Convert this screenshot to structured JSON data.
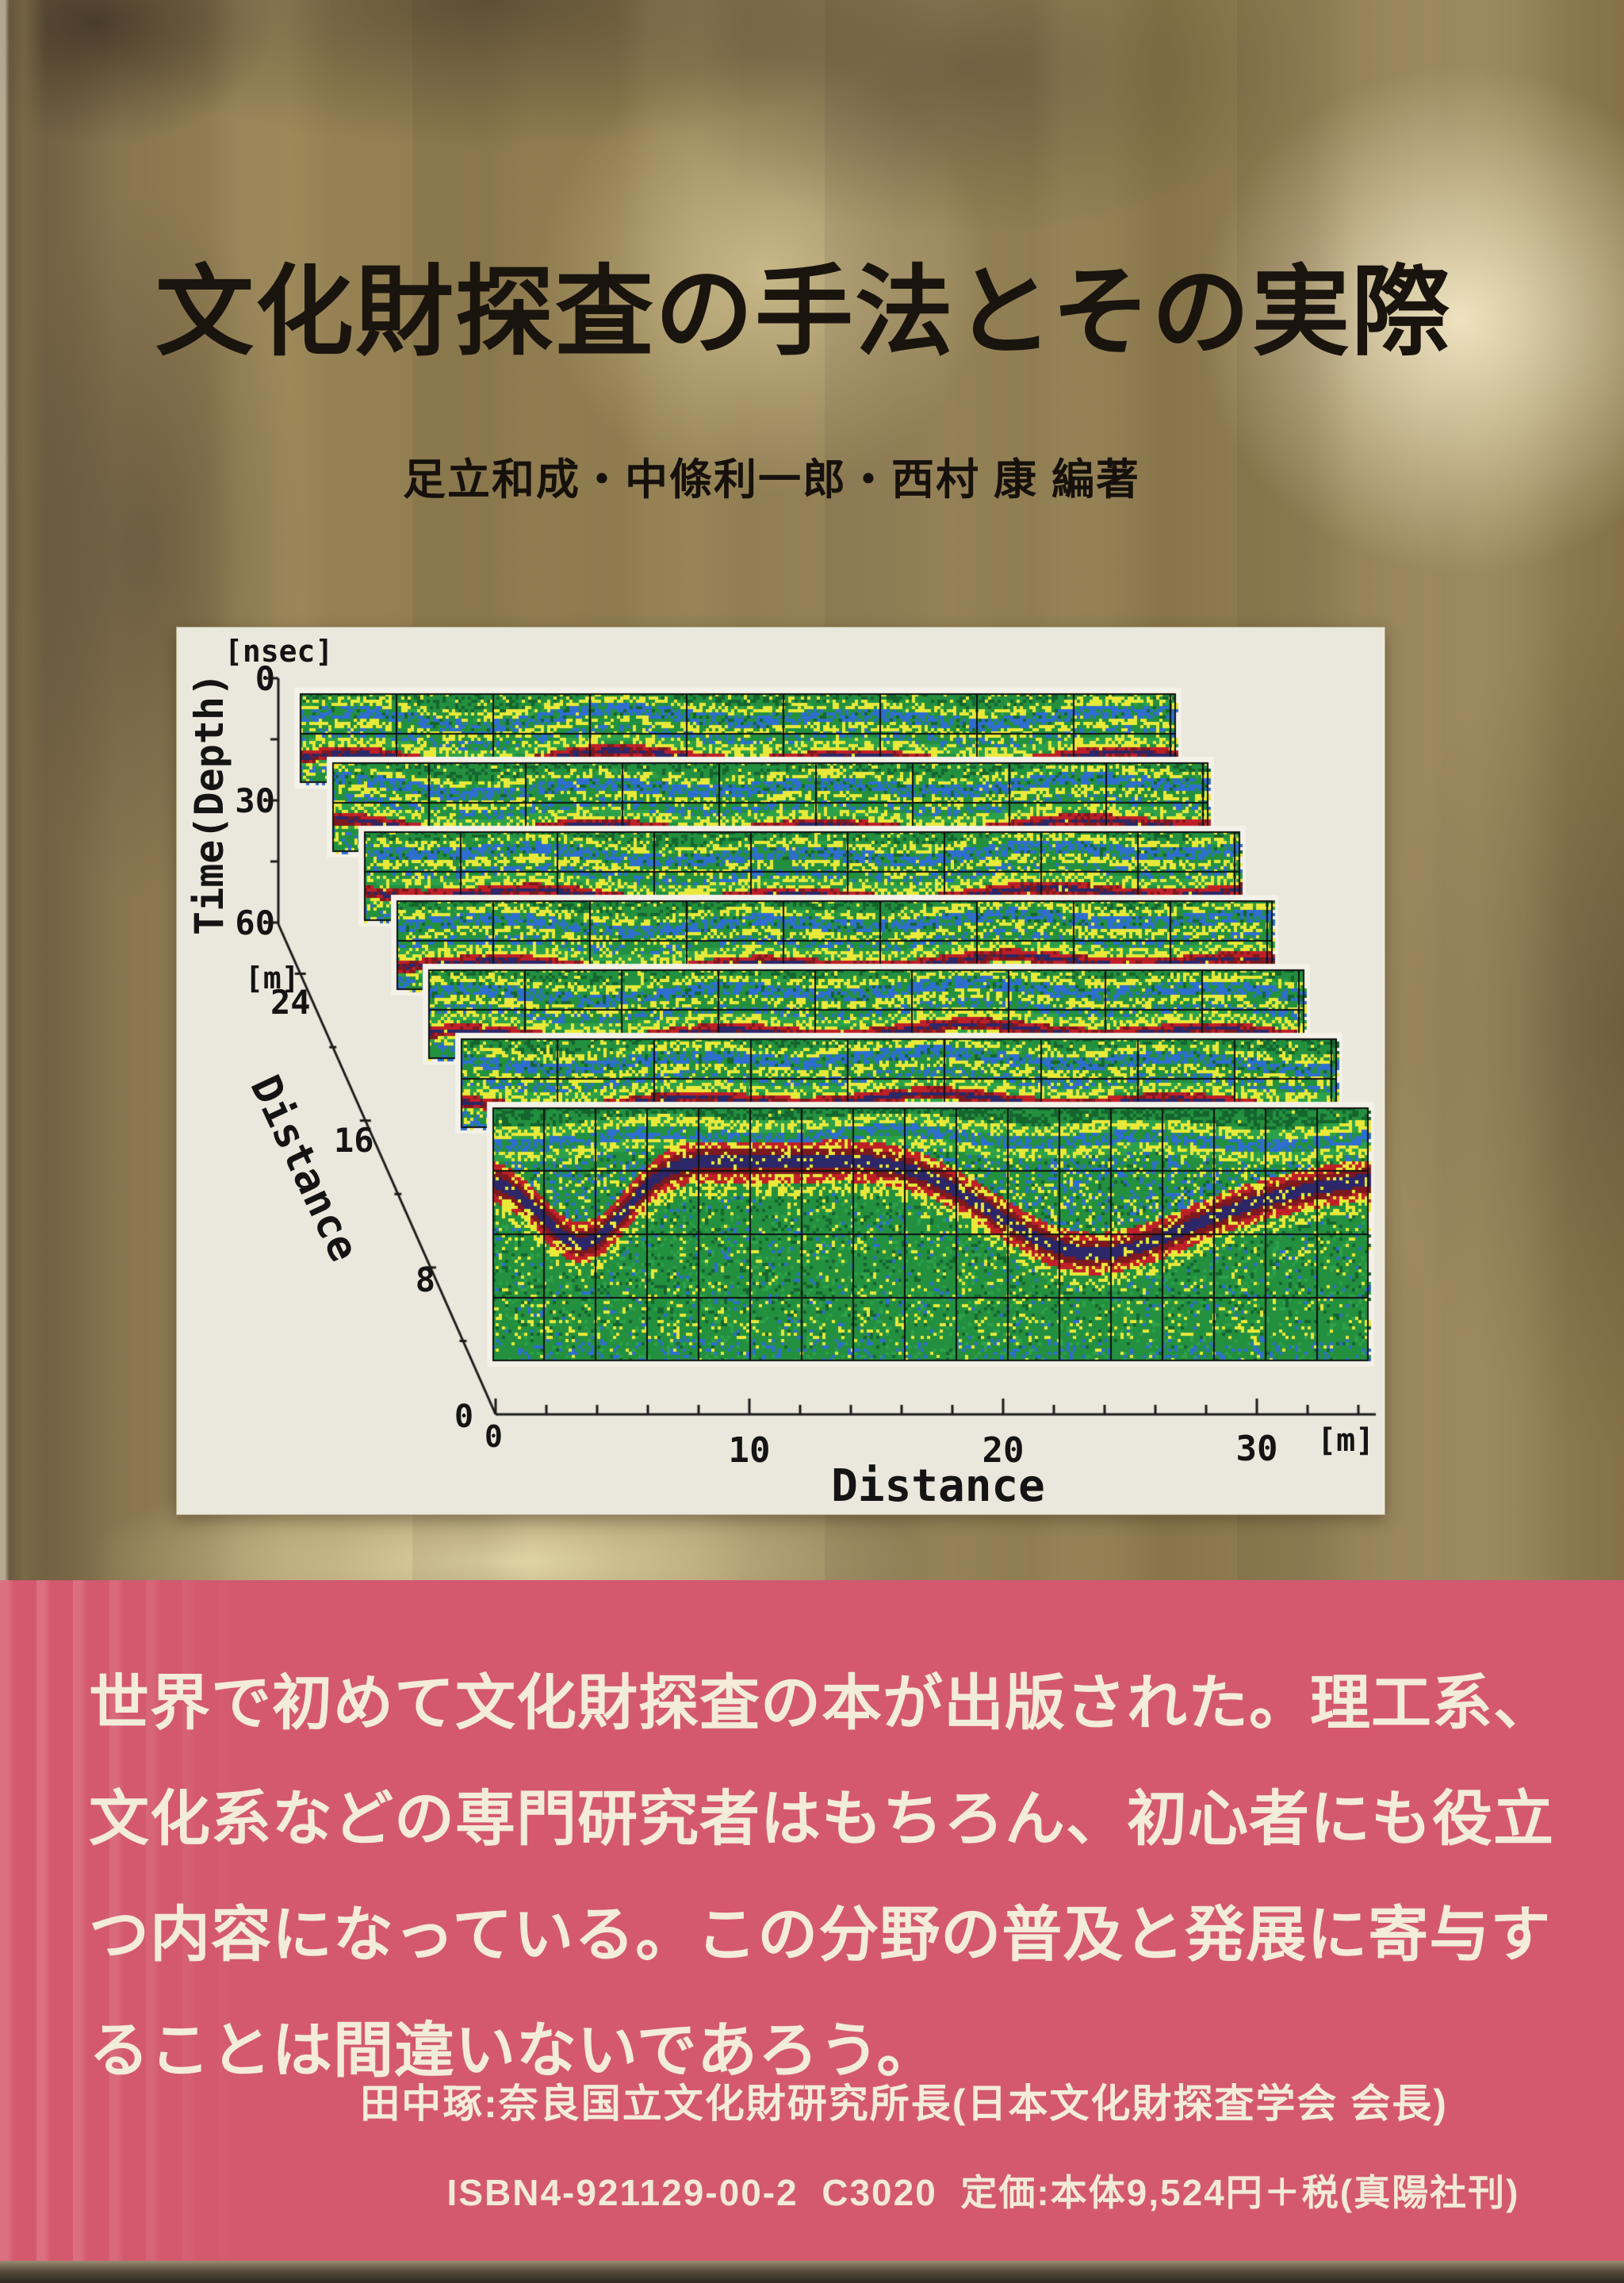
{
  "cover": {
    "title": "文化財探査の手法とその実際",
    "authors": "足立和成・中條利一郎・西村 康 編著"
  },
  "chart_data": {
    "type": "heatmap",
    "subtype": "gpr-radargram-3d-stack",
    "description": "Seven parallel ground-penetrating-radar profile sections stacked in 3D perspective; green/yellow/blue/red reflection bands with black grid overlay",
    "profiles": 7,
    "profile_spacing_m": 4,
    "x_axis": {
      "label": "Distance",
      "unit": "[m]",
      "ticks": [
        0,
        10,
        20,
        30
      ],
      "range": [
        0,
        34
      ]
    },
    "profile_axis": {
      "label": "Distance",
      "unit": "[m]",
      "ticks": [
        24,
        16,
        8,
        0
      ],
      "range": [
        0,
        26
      ]
    },
    "time_axis": {
      "label": "Time(Depth)",
      "unit": "[nsec]",
      "ticks": [
        0,
        30,
        60
      ],
      "range": [
        0,
        65
      ]
    },
    "palette": {
      "mat": "#f3f1e8",
      "green": "#23903f",
      "green2": "#2da14a",
      "dgreen": "#15662e",
      "yellow": "#e9e93a",
      "blue": "#2e6ece",
      "red": "#bf2028",
      "darkred": "#7d191f",
      "purple": "#2c2768",
      "grid": "#101010",
      "axis": "#1b1b1b"
    },
    "legend_position": "none",
    "grid": true
  },
  "obi": {
    "color": "#d4596f",
    "lines": [
      "世界で初めて文化財探査の本が出版された。理工系、",
      "文化系などの専門研究者はもちろん、初心者にも役立",
      "つ内容になっている。この分野の普及と発展に寄与す",
      "ることは間違いないであろう。"
    ],
    "attribution": "田中琢:奈良国立文化財研究所長(日本文化財探査学会 会長)",
    "isbn_line": "ISBN4-921129-00-2  C3020  定価:本体9,524円＋税(真陽社刊)"
  }
}
